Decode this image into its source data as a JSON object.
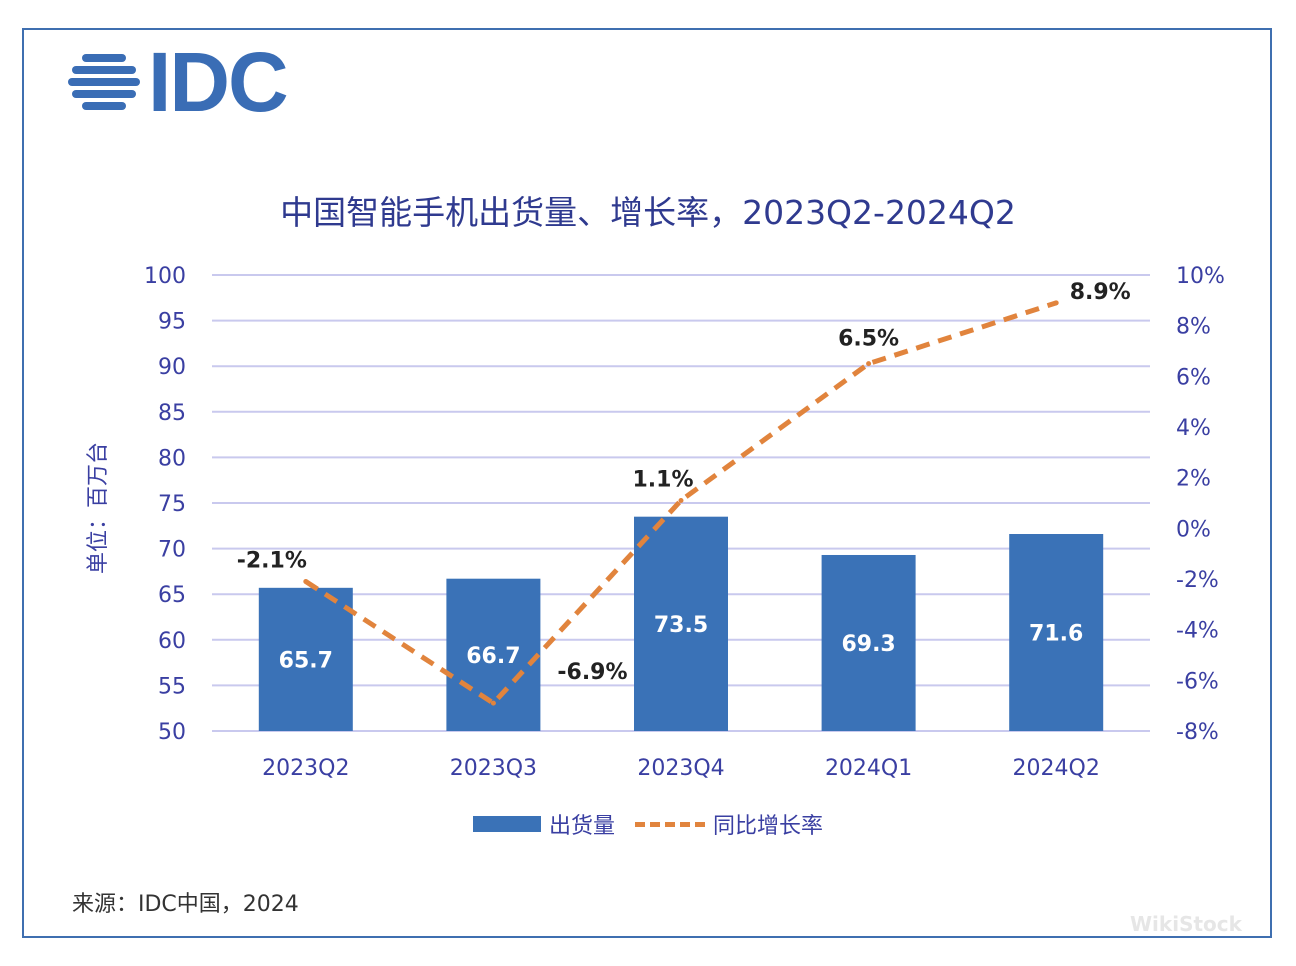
{
  "logo": {
    "text": "IDC"
  },
  "title": "中国智能手机出货量、增长率，2023Q2-2024Q2",
  "source": "来源：IDC中国，2024",
  "watermark": "WikiStock",
  "colors": {
    "bar": "#3a72b7",
    "line": "#e1843d",
    "grid": "#c9c9ee",
    "axis_text": "#3a3fa2",
    "title": "#2f3a8f"
  },
  "chart_data": {
    "type": "bar",
    "title": "中国智能手机出货量、增长率，2023Q2-2024Q2",
    "categories": [
      "2023Q2",
      "2023Q3",
      "2023Q4",
      "2024Q1",
      "2024Q2"
    ],
    "ylabel": "单位：百万台",
    "ylim": [
      50,
      100
    ],
    "y_ticks": [
      "100",
      "95",
      "90",
      "85",
      "80",
      "75",
      "70",
      "65",
      "60",
      "55",
      "50"
    ],
    "y2lim": [
      -8,
      10
    ],
    "y2_ticks": [
      "10%",
      "8%",
      "6%",
      "4%",
      "2%",
      "0%",
      "-2%",
      "-4%",
      "-6%",
      "-8%"
    ],
    "grid": true,
    "legend_position": "bottom",
    "series": [
      {
        "name": "出货量",
        "type": "bar",
        "axis": "left",
        "values": [
          65.7,
          66.7,
          73.5,
          69.3,
          71.6
        ],
        "labels": [
          "65.7",
          "66.7",
          "73.5",
          "69.3",
          "71.6"
        ]
      },
      {
        "name": "同比增长率",
        "type": "line",
        "style": "dashed",
        "axis": "right",
        "values": [
          -2.1,
          -6.9,
          1.1,
          6.5,
          8.9
        ],
        "labels": [
          "-2.1%",
          "-6.9%",
          "1.1%",
          "6.5%",
          "8.9%"
        ]
      }
    ]
  }
}
